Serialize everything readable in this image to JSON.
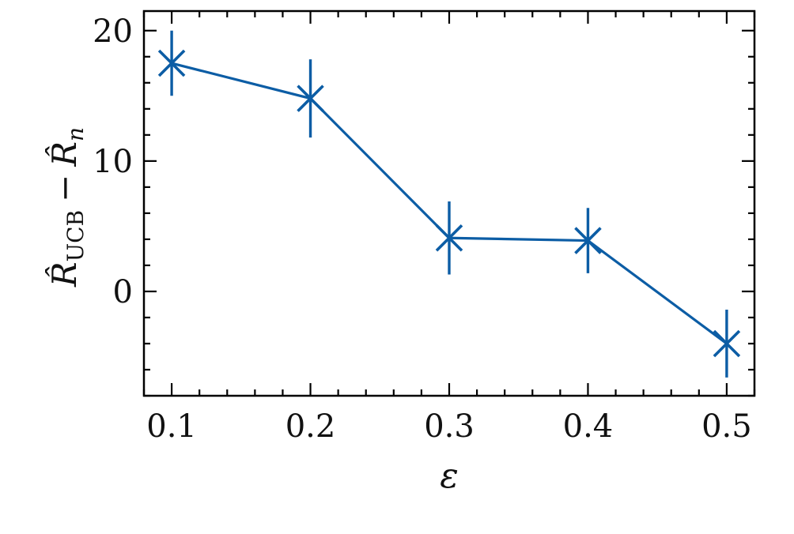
{
  "chart_data": {
    "type": "line",
    "title": "",
    "xlabel": "ε",
    "ylabel": {
      "main": "R̂",
      "subscript": "UCB",
      "operator": "−",
      "main2": "R̂",
      "subscript2": "n"
    },
    "xlim": [
      0.08,
      0.52
    ],
    "ylim": [
      -8,
      21.5
    ],
    "x_ticks": [
      0.1,
      0.2,
      0.3,
      0.4,
      0.5
    ],
    "x_tick_labels": [
      "0.1",
      "0.2",
      "0.3",
      "0.4",
      "0.5"
    ],
    "y_ticks": [
      0,
      10,
      20
    ],
    "y_tick_labels": [
      "0",
      "10",
      "20"
    ],
    "grid": false,
    "series": [
      {
        "x": [
          0.1,
          0.2,
          0.3,
          0.4,
          0.5
        ],
        "y": [
          17.5,
          14.8,
          4.1,
          3.9,
          -4.0
        ],
        "yerr": [
          2.5,
          3.0,
          2.8,
          2.5,
          2.6
        ],
        "marker": "x",
        "color": "#0c5da5"
      }
    ]
  }
}
